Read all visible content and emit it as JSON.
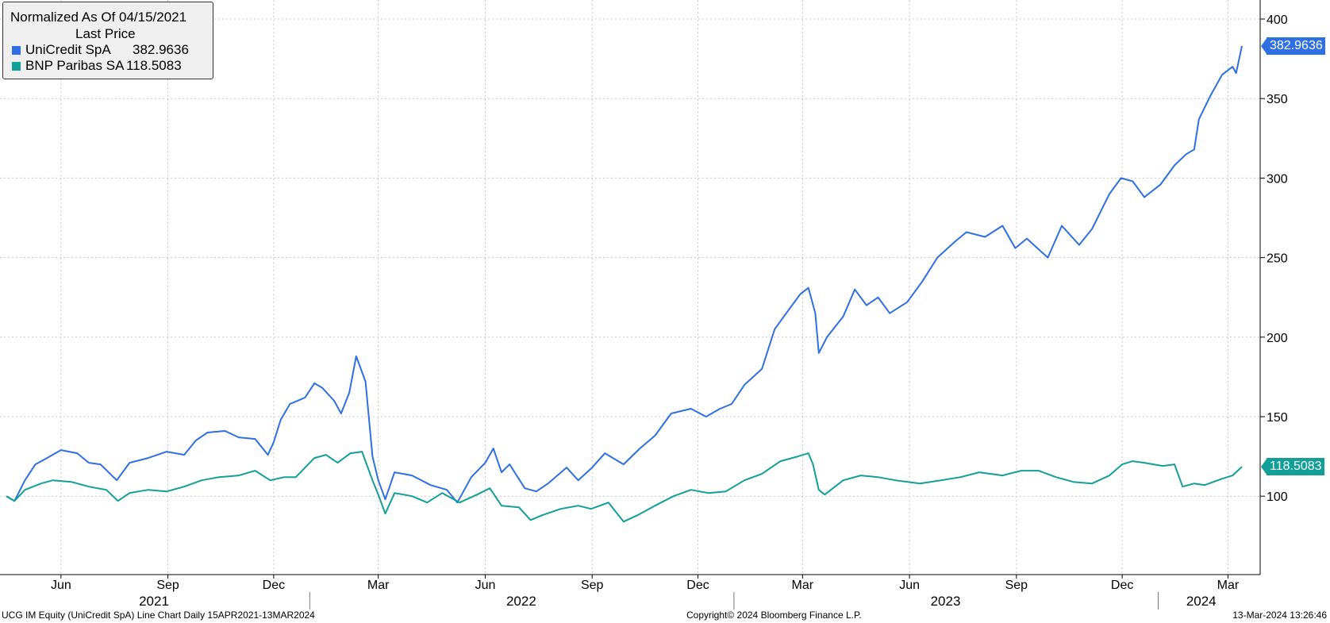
{
  "legend": {
    "title": "Normalized As Of 04/15/2021",
    "subtitle": "Last Price",
    "series": [
      {
        "name": "UniCredit SpA",
        "value": "382.9636",
        "color": "#2f6fe4"
      },
      {
        "name": "BNP Paribas SA",
        "value": "118.5083",
        "color": "#119f98"
      }
    ]
  },
  "footer": {
    "left": "UCG IM Equity (UniCredit SpA) Line Chart  Daily 15APR2021-13MAR2024",
    "center": "Copyright© 2024 Bloomberg Finance L.P.",
    "right": "13-Mar-2024 13:26:46"
  },
  "chart_data": {
    "type": "line",
    "title": "Normalized As Of 04/15/2021",
    "subtitle": "Last Price",
    "x_range": [
      "2021-04-15",
      "2024-03-13"
    ],
    "ylim": [
      50,
      410
    ],
    "y_ticks": [
      100,
      150,
      200,
      250,
      300,
      350,
      400
    ],
    "y_axis_position": "right",
    "grid": true,
    "legend_position": "top-left",
    "x_month_ticks": [
      {
        "date": "2021-06-01",
        "label": "Jun"
      },
      {
        "date": "2021-09-01",
        "label": "Sep"
      },
      {
        "date": "2021-12-01",
        "label": "Dec"
      },
      {
        "date": "2022-03-01",
        "label": "Mar"
      },
      {
        "date": "2022-06-01",
        "label": "Jun"
      },
      {
        "date": "2022-09-01",
        "label": "Sep"
      },
      {
        "date": "2022-12-01",
        "label": "Dec"
      },
      {
        "date": "2023-03-01",
        "label": "Mar"
      },
      {
        "date": "2023-06-01",
        "label": "Jun"
      },
      {
        "date": "2023-09-01",
        "label": "Sep"
      },
      {
        "date": "2023-12-01",
        "label": "Dec"
      },
      {
        "date": "2024-03-01",
        "label": "Mar"
      }
    ],
    "x_year_labels": [
      {
        "label": "2021",
        "center": "2021-08-20",
        "boundary": "2022-01-01"
      },
      {
        "label": "2022",
        "center": "2022-07-02",
        "boundary": "2023-01-01"
      },
      {
        "label": "2023",
        "center": "2023-07-02",
        "boundary": "2024-01-01"
      },
      {
        "label": "2024",
        "center": "2024-02-07",
        "boundary": null
      }
    ],
    "series": [
      {
        "name": "UniCredit SpA",
        "color": "#2f6fe4",
        "last_value": "382.9636",
        "points": [
          [
            "2021-04-15",
            100
          ],
          [
            "2021-04-22",
            97
          ],
          [
            "2021-05-01",
            110
          ],
          [
            "2021-05-10",
            120
          ],
          [
            "2021-05-20",
            124
          ],
          [
            "2021-06-01",
            129
          ],
          [
            "2021-06-15",
            127
          ],
          [
            "2021-06-25",
            121
          ],
          [
            "2021-07-05",
            120
          ],
          [
            "2021-07-19",
            110
          ],
          [
            "2021-07-30",
            121
          ],
          [
            "2021-08-15",
            124
          ],
          [
            "2021-08-31",
            128
          ],
          [
            "2021-09-15",
            126
          ],
          [
            "2021-09-25",
            135
          ],
          [
            "2021-10-05",
            140
          ],
          [
            "2021-10-20",
            141
          ],
          [
            "2021-11-01",
            137
          ],
          [
            "2021-11-15",
            136
          ],
          [
            "2021-11-26",
            126
          ],
          [
            "2021-12-01",
            134
          ],
          [
            "2021-12-07",
            148
          ],
          [
            "2021-12-15",
            158
          ],
          [
            "2021-12-28",
            162
          ],
          [
            "2022-01-05",
            171
          ],
          [
            "2022-01-12",
            168
          ],
          [
            "2022-01-22",
            160
          ],
          [
            "2022-01-28",
            152
          ],
          [
            "2022-02-04",
            165
          ],
          [
            "2022-02-10",
            188
          ],
          [
            "2022-02-18",
            172
          ],
          [
            "2022-02-24",
            125
          ],
          [
            "2022-03-01",
            110
          ],
          [
            "2022-03-07",
            98
          ],
          [
            "2022-03-15",
            115
          ],
          [
            "2022-03-30",
            113
          ],
          [
            "2022-04-15",
            107
          ],
          [
            "2022-04-29",
            104
          ],
          [
            "2022-05-08",
            96
          ],
          [
            "2022-05-20",
            112
          ],
          [
            "2022-06-01",
            121
          ],
          [
            "2022-06-08",
            130
          ],
          [
            "2022-06-15",
            115
          ],
          [
            "2022-06-22",
            120
          ],
          [
            "2022-07-05",
            105
          ],
          [
            "2022-07-15",
            103
          ],
          [
            "2022-07-25",
            108
          ],
          [
            "2022-08-10",
            118
          ],
          [
            "2022-08-20",
            110
          ],
          [
            "2022-09-01",
            118
          ],
          [
            "2022-09-12",
            127
          ],
          [
            "2022-09-28",
            120
          ],
          [
            "2022-10-12",
            130
          ],
          [
            "2022-10-25",
            138
          ],
          [
            "2022-11-08",
            152
          ],
          [
            "2022-11-25",
            155
          ],
          [
            "2022-12-08",
            150
          ],
          [
            "2022-12-20",
            155
          ],
          [
            "2022-12-30",
            158
          ],
          [
            "2023-01-10",
            170
          ],
          [
            "2023-01-25",
            180
          ],
          [
            "2023-02-05",
            205
          ],
          [
            "2023-02-15",
            215
          ],
          [
            "2023-02-27",
            227
          ],
          [
            "2023-03-06",
            231
          ],
          [
            "2023-03-12",
            215
          ],
          [
            "2023-03-15",
            190
          ],
          [
            "2023-03-22",
            200
          ],
          [
            "2023-04-05",
            213
          ],
          [
            "2023-04-15",
            230
          ],
          [
            "2023-04-25",
            220
          ],
          [
            "2023-05-05",
            225
          ],
          [
            "2023-05-15",
            215
          ],
          [
            "2023-05-30",
            222
          ],
          [
            "2023-06-12",
            235
          ],
          [
            "2023-06-25",
            250
          ],
          [
            "2023-07-10",
            260
          ],
          [
            "2023-07-20",
            266
          ],
          [
            "2023-08-05",
            263
          ],
          [
            "2023-08-20",
            270
          ],
          [
            "2023-08-31",
            256
          ],
          [
            "2023-09-10",
            262
          ],
          [
            "2023-09-28",
            250
          ],
          [
            "2023-10-10",
            270
          ],
          [
            "2023-10-25",
            258
          ],
          [
            "2023-11-05",
            268
          ],
          [
            "2023-11-20",
            290
          ],
          [
            "2023-11-30",
            300
          ],
          [
            "2023-12-10",
            298
          ],
          [
            "2023-12-20",
            288
          ],
          [
            "2024-01-03",
            296
          ],
          [
            "2024-01-15",
            308
          ],
          [
            "2024-01-25",
            315
          ],
          [
            "2024-02-01",
            318
          ],
          [
            "2024-02-05",
            337
          ],
          [
            "2024-02-15",
            352
          ],
          [
            "2024-02-25",
            365
          ],
          [
            "2024-03-05",
            370
          ],
          [
            "2024-03-08",
            366
          ],
          [
            "2024-03-13",
            382.9636
          ]
        ]
      },
      {
        "name": "BNP Paribas SA",
        "color": "#119f98",
        "last_value": "118.5083",
        "points": [
          [
            "2021-04-15",
            100
          ],
          [
            "2021-04-22",
            97
          ],
          [
            "2021-05-01",
            104
          ],
          [
            "2021-05-15",
            108
          ],
          [
            "2021-05-25",
            110
          ],
          [
            "2021-06-10",
            109
          ],
          [
            "2021-06-25",
            106
          ],
          [
            "2021-07-10",
            104
          ],
          [
            "2021-07-20",
            97
          ],
          [
            "2021-07-30",
            102
          ],
          [
            "2021-08-15",
            104
          ],
          [
            "2021-08-31",
            103
          ],
          [
            "2021-09-15",
            106
          ],
          [
            "2021-09-30",
            110
          ],
          [
            "2021-10-15",
            112
          ],
          [
            "2021-11-01",
            113
          ],
          [
            "2021-11-15",
            116
          ],
          [
            "2021-11-28",
            110
          ],
          [
            "2021-12-10",
            112
          ],
          [
            "2021-12-20",
            112
          ],
          [
            "2022-01-05",
            124
          ],
          [
            "2022-01-15",
            126
          ],
          [
            "2022-01-25",
            121
          ],
          [
            "2022-02-05",
            127
          ],
          [
            "2022-02-15",
            128
          ],
          [
            "2022-02-24",
            110
          ],
          [
            "2022-03-01",
            101
          ],
          [
            "2022-03-07",
            89
          ],
          [
            "2022-03-15",
            102
          ],
          [
            "2022-03-30",
            100
          ],
          [
            "2022-04-12",
            96
          ],
          [
            "2022-04-25",
            102
          ],
          [
            "2022-05-10",
            96
          ],
          [
            "2022-05-25",
            101
          ],
          [
            "2022-06-05",
            105
          ],
          [
            "2022-06-15",
            94
          ],
          [
            "2022-06-30",
            93
          ],
          [
            "2022-07-10",
            85
          ],
          [
            "2022-07-20",
            88
          ],
          [
            "2022-08-05",
            92
          ],
          [
            "2022-08-20",
            94
          ],
          [
            "2022-08-31",
            92
          ],
          [
            "2022-09-15",
            96
          ],
          [
            "2022-09-28",
            84
          ],
          [
            "2022-10-10",
            88
          ],
          [
            "2022-10-25",
            94
          ],
          [
            "2022-11-10",
            100
          ],
          [
            "2022-11-25",
            104
          ],
          [
            "2022-12-10",
            102
          ],
          [
            "2022-12-25",
            103
          ],
          [
            "2023-01-10",
            110
          ],
          [
            "2023-01-25",
            114
          ],
          [
            "2023-02-10",
            122
          ],
          [
            "2023-02-25",
            125
          ],
          [
            "2023-03-06",
            127
          ],
          [
            "2023-03-10",
            120
          ],
          [
            "2023-03-15",
            104
          ],
          [
            "2023-03-20",
            101
          ],
          [
            "2023-04-05",
            110
          ],
          [
            "2023-04-20",
            113
          ],
          [
            "2023-05-05",
            112
          ],
          [
            "2023-05-20",
            110
          ],
          [
            "2023-06-10",
            108
          ],
          [
            "2023-06-28",
            110
          ],
          [
            "2023-07-15",
            112
          ],
          [
            "2023-07-31",
            115
          ],
          [
            "2023-08-20",
            113
          ],
          [
            "2023-09-05",
            116
          ],
          [
            "2023-09-20",
            116
          ],
          [
            "2023-10-05",
            112
          ],
          [
            "2023-10-20",
            109
          ],
          [
            "2023-11-05",
            108
          ],
          [
            "2023-11-20",
            113
          ],
          [
            "2023-12-01",
            120
          ],
          [
            "2023-12-10",
            122
          ],
          [
            "2023-12-20",
            121
          ],
          [
            "2024-01-05",
            119
          ],
          [
            "2024-01-15",
            120
          ],
          [
            "2024-01-22",
            106
          ],
          [
            "2024-02-01",
            108
          ],
          [
            "2024-02-10",
            107
          ],
          [
            "2024-02-25",
            111
          ],
          [
            "2024-03-05",
            113
          ],
          [
            "2024-03-13",
            118.5083
          ]
        ]
      }
    ]
  }
}
